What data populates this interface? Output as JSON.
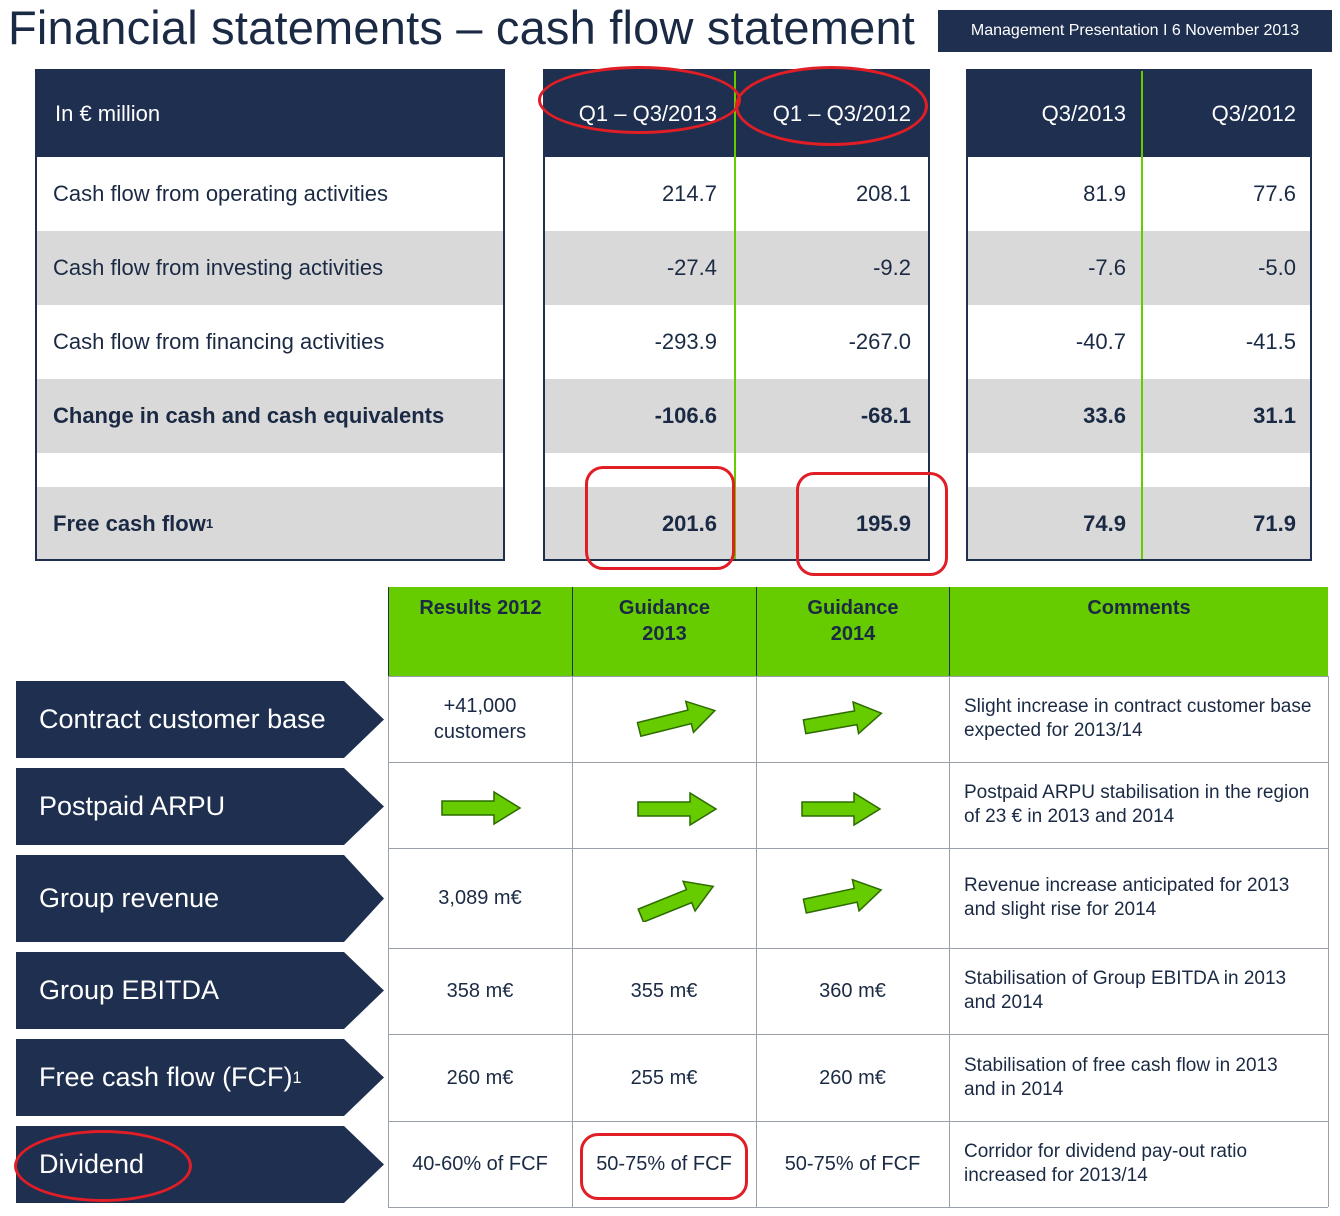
{
  "title": "Financial statements – cash flow statement",
  "badge": "Management Presentation  I  6 November  2013",
  "cashflow": {
    "unit_label": "In € million",
    "columns": [
      "Q1 – Q3/2013",
      "Q1 – Q3/2012",
      "Q3/2013",
      "Q3/2012"
    ],
    "rows": [
      {
        "label": "Cash flow from operating activities",
        "values": [
          "214.7",
          "208.1",
          "81.9",
          "77.6"
        ]
      },
      {
        "label": "Cash flow from investing activities",
        "values": [
          "-27.4",
          "-9.2",
          "-7.6",
          "-5.0"
        ]
      },
      {
        "label": "Cash flow from financing activities",
        "values": [
          "-293.9",
          "-267.0",
          "-40.7",
          "-41.5"
        ]
      },
      {
        "label": "Change in cash and cash equivalents",
        "values": [
          "-106.6",
          "-68.1",
          "33.6",
          "31.1"
        ]
      }
    ],
    "fcf": {
      "label": "Free cash flow",
      "footnote": "1",
      "values": [
        "201.6",
        "195.9",
        "74.9",
        "71.9"
      ]
    }
  },
  "guidance": {
    "headers": [
      "Results 2012",
      "Guidance 2013",
      "Guidance 2014",
      "Comments"
    ],
    "rows": [
      {
        "label": "Contract customer base",
        "footnote": "",
        "results": "+41,000 customers",
        "g2013": "",
        "g2014": "",
        "comment": "Slight increase in contract customer base expected for 2013/14"
      },
      {
        "label": "Postpaid ARPU",
        "footnote": "",
        "results": "",
        "g2013": "",
        "g2014": "",
        "comment": "Postpaid ARPU stabilisation in the region of 23 € in 2013 and 2014"
      },
      {
        "label": "Group revenue",
        "footnote": "",
        "results": "3,089 m€",
        "g2013": "",
        "g2014": "",
        "comment": "Revenue increase anticipated for 2013 and slight rise for 2014"
      },
      {
        "label": "Group EBITDA",
        "footnote": "",
        "results": "358 m€",
        "g2013": "355 m€",
        "g2014": "360 m€",
        "comment": "Stabilisation of Group EBITDA in 2013 and 2014"
      },
      {
        "label": "Free cash flow (FCF)",
        "footnote": "1",
        "results": "260 m€",
        "g2013": "255 m€",
        "g2014": "260 m€",
        "comment": "Stabilisation of free cash flow in 2013 and in 2014"
      },
      {
        "label": "Dividend",
        "footnote": "",
        "results": "40-60% of FCF",
        "g2013": "50-75% of FCF",
        "g2014": "50-75% of FCF",
        "comment": "Corridor for dividend pay-out ratio increased for 2013/14"
      }
    ],
    "arrows": {
      "up": "up-right-arrow-icon",
      "flat": "right-arrow-icon"
    },
    "arrow_color": "#66cc00"
  },
  "colors": {
    "navy": "#1e2f50",
    "green": "#66cc00",
    "highlight": "#e11d25",
    "gray": "#d9d9d9"
  }
}
